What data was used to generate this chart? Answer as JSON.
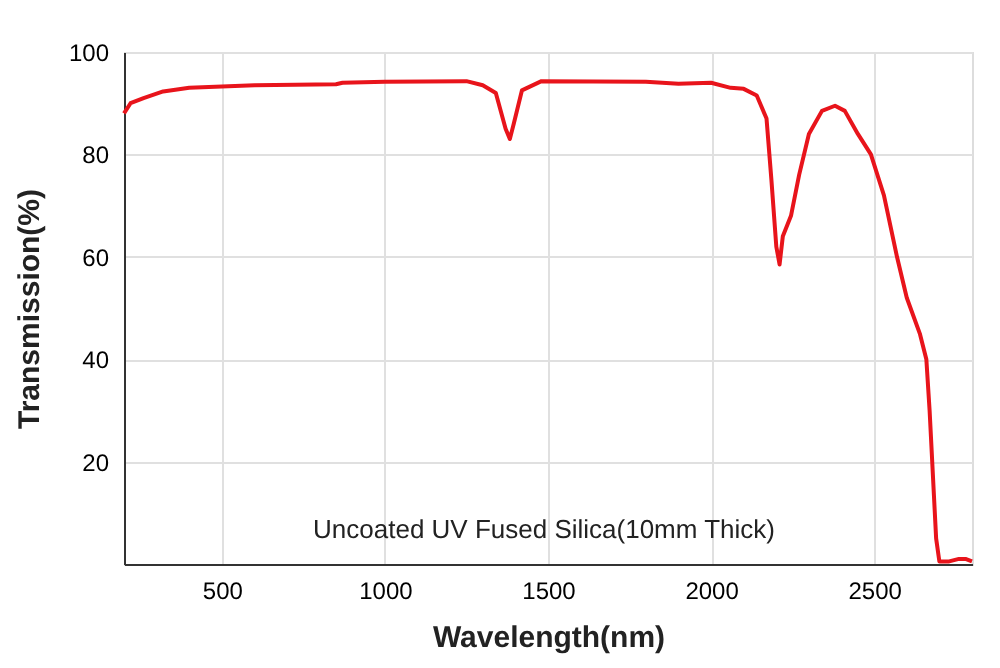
{
  "chart_data": {
    "type": "line",
    "xlabel": "Wavelength(nm)",
    "ylabel": "Transmission(%)",
    "annotations": [
      "Uncoated UV Fused Silica(10mm Thick)"
    ],
    "xlim": [
      200,
      2800
    ],
    "xticks": [
      500,
      1000,
      1500,
      2000,
      2500
    ],
    "ylim": [
      0,
      100
    ],
    "yticks": [
      20,
      40,
      60,
      80,
      100
    ],
    "grid": true,
    "marker": "none",
    "line_style": "solid",
    "series": [
      {
        "color": "#e8141b",
        "x": [
          200,
          220,
          260,
          320,
          400,
          600,
          850,
          870,
          1000,
          1250,
          1300,
          1340,
          1370,
          1383,
          1395,
          1420,
          1480,
          1800,
          1900,
          2000,
          2060,
          2100,
          2140,
          2170,
          2185,
          2200,
          2210,
          2220,
          2245,
          2270,
          2300,
          2340,
          2380,
          2410,
          2450,
          2490,
          2530,
          2570,
          2600,
          2640,
          2660,
          2670,
          2690,
          2700,
          2730,
          2760,
          2780,
          2800
        ],
        "values": [
          88,
          90,
          91,
          92.3,
          93,
          93.5,
          93.7,
          94,
          94.2,
          94.3,
          93.5,
          92,
          85,
          83,
          86,
          92.5,
          94.3,
          94.2,
          93.8,
          94,
          93,
          92.8,
          91.5,
          87,
          75,
          62,
          58.5,
          64,
          68,
          76,
          84,
          88.5,
          89.5,
          88.5,
          84,
          80,
          72,
          60,
          52,
          45,
          40,
          30,
          5,
          0.5,
          0.5,
          1,
          1,
          0.5
        ]
      }
    ]
  }
}
